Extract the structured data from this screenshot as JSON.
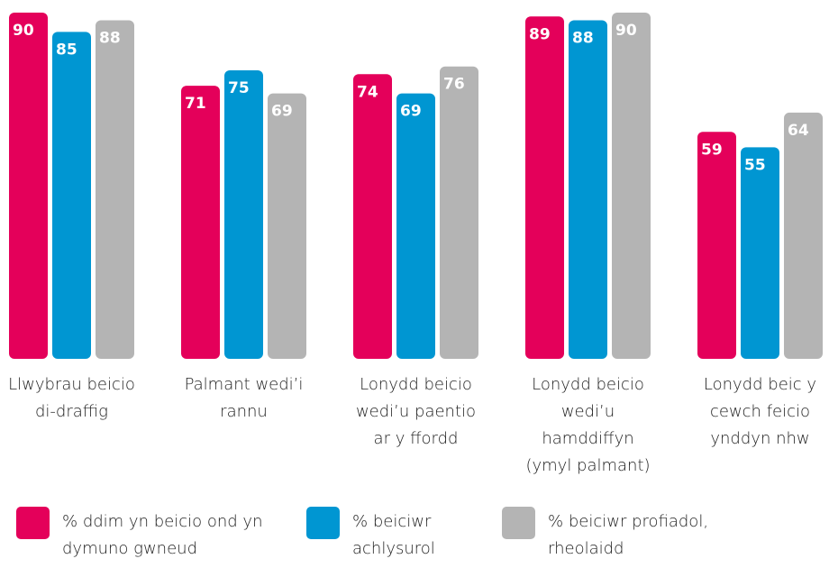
{
  "chart_data": {
    "type": "bar",
    "categories": [
      "Llwybrau beicio di-draffig",
      "Palmant wedi’i rannu",
      "Lonydd beicio wedi’u paentio ar y ffordd",
      "Lonydd beicio wedi’u hamddiffyn (ymyl palmant)",
      "Lonydd beic y cewch feicio ynddyn nhw"
    ],
    "series": [
      {
        "name": "% ddim yn beicio ond yn dymuno gwneud",
        "color": "#e4005a",
        "values": [
          90,
          71,
          74,
          89,
          59
        ]
      },
      {
        "name": "% beiciwr achlysurol",
        "color": "#0096d2",
        "values": [
          85,
          75,
          69,
          88,
          55
        ]
      },
      {
        "name": "% beiciwr profiadol, rheolaidd",
        "color": "#b4b4b4",
        "values": [
          88,
          69,
          76,
          90,
          64
        ]
      }
    ],
    "ylim": [
      0,
      90
    ],
    "grid": false
  }
}
